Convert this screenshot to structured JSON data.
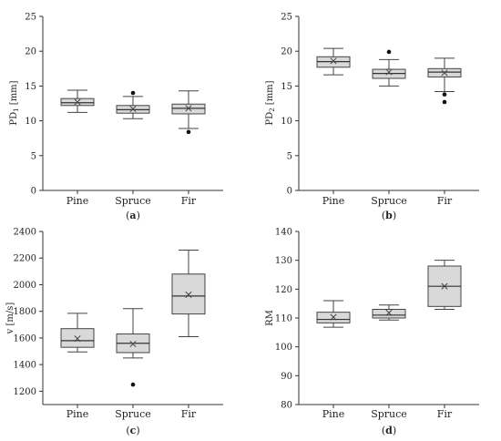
{
  "chart_data": [
    {
      "id": "a",
      "type": "box",
      "panel_label": "a",
      "ylabel": "PD1 [mm]",
      "ylabel_main": "PD",
      "ylabel_sub": "1",
      "ylabel_unit": " [mm]",
      "ylim": [
        0,
        25
      ],
      "yticks": [
        0,
        5,
        10,
        15,
        20,
        25
      ],
      "categories": [
        "Pine",
        "Spruce",
        "Fir"
      ],
      "boxes": [
        {
          "min": 11.2,
          "q1": 12.2,
          "median": 12.6,
          "q3": 13.2,
          "max": 14.4,
          "mean": 12.7,
          "outliers": []
        },
        {
          "min": 10.3,
          "q1": 11.1,
          "median": 11.6,
          "q3": 12.2,
          "max": 13.5,
          "mean": 11.7,
          "outliers": [
            14.0
          ]
        },
        {
          "min": 8.9,
          "q1": 11.0,
          "median": 11.8,
          "q3": 12.4,
          "max": 14.3,
          "mean": 11.8,
          "outliers": [
            8.4
          ]
        }
      ]
    },
    {
      "id": "b",
      "type": "box",
      "panel_label": "b",
      "ylabel": "PD2 [mm]",
      "ylabel_main": "PD",
      "ylabel_sub": "2",
      "ylabel_unit": " [mm]",
      "ylim": [
        0,
        25
      ],
      "yticks": [
        0,
        5,
        10,
        15,
        20,
        25
      ],
      "categories": [
        "Pine",
        "Spruce",
        "Fir"
      ],
      "boxes": [
        {
          "min": 16.6,
          "q1": 17.7,
          "median": 18.5,
          "q3": 19.2,
          "max": 20.4,
          "mean": 18.6,
          "outliers": []
        },
        {
          "min": 15.0,
          "q1": 16.1,
          "median": 16.8,
          "q3": 17.4,
          "max": 18.8,
          "mean": 17.0,
          "outliers": [
            19.9
          ]
        },
        {
          "min": 14.2,
          "q1": 16.3,
          "median": 17.0,
          "q3": 17.5,
          "max": 19.0,
          "mean": 16.9,
          "outliers": [
            13.8,
            12.7
          ]
        }
      ]
    },
    {
      "id": "c",
      "type": "box",
      "panel_label": "c",
      "ylabel": "v [m/s]",
      "ylabel_main": "v",
      "ylabel_sub": "",
      "ylabel_unit": " [m/s]",
      "ylim": [
        1100,
        2400
      ],
      "yticks": [
        1200,
        1400,
        1600,
        1800,
        2000,
        2200,
        2400
      ],
      "categories": [
        "Pine",
        "Spruce",
        "Fir"
      ],
      "boxes": [
        {
          "min": 1495,
          "q1": 1530,
          "median": 1580,
          "q3": 1670,
          "max": 1785,
          "mean": 1595,
          "outliers": []
        },
        {
          "min": 1450,
          "q1": 1490,
          "median": 1560,
          "q3": 1630,
          "max": 1820,
          "mean": 1555,
          "outliers": [
            1250
          ]
        },
        {
          "min": 1610,
          "q1": 1780,
          "median": 1915,
          "q3": 2080,
          "max": 2260,
          "mean": 1925,
          "outliers": []
        }
      ]
    },
    {
      "id": "d",
      "type": "box",
      "panel_label": "d",
      "ylabel": "RM",
      "ylabel_main": "RM",
      "ylabel_sub": "",
      "ylabel_unit": "",
      "ylim": [
        80,
        140
      ],
      "yticks": [
        80,
        90,
        100,
        110,
        120,
        130,
        140
      ],
      "categories": [
        "Pine",
        "Spruce",
        "Fir"
      ],
      "boxes": [
        {
          "min": 106.8,
          "q1": 108.3,
          "median": 109.5,
          "q3": 112.0,
          "max": 116.0,
          "mean": 110.3,
          "outliers": []
        },
        {
          "min": 109.3,
          "q1": 110.0,
          "median": 111.0,
          "q3": 113.0,
          "max": 114.5,
          "mean": 111.8,
          "outliers": []
        },
        {
          "min": 113.0,
          "q1": 114.0,
          "median": 121.0,
          "q3": 128.0,
          "max": 130.0,
          "mean": 121.0,
          "outliers": []
        }
      ]
    }
  ]
}
